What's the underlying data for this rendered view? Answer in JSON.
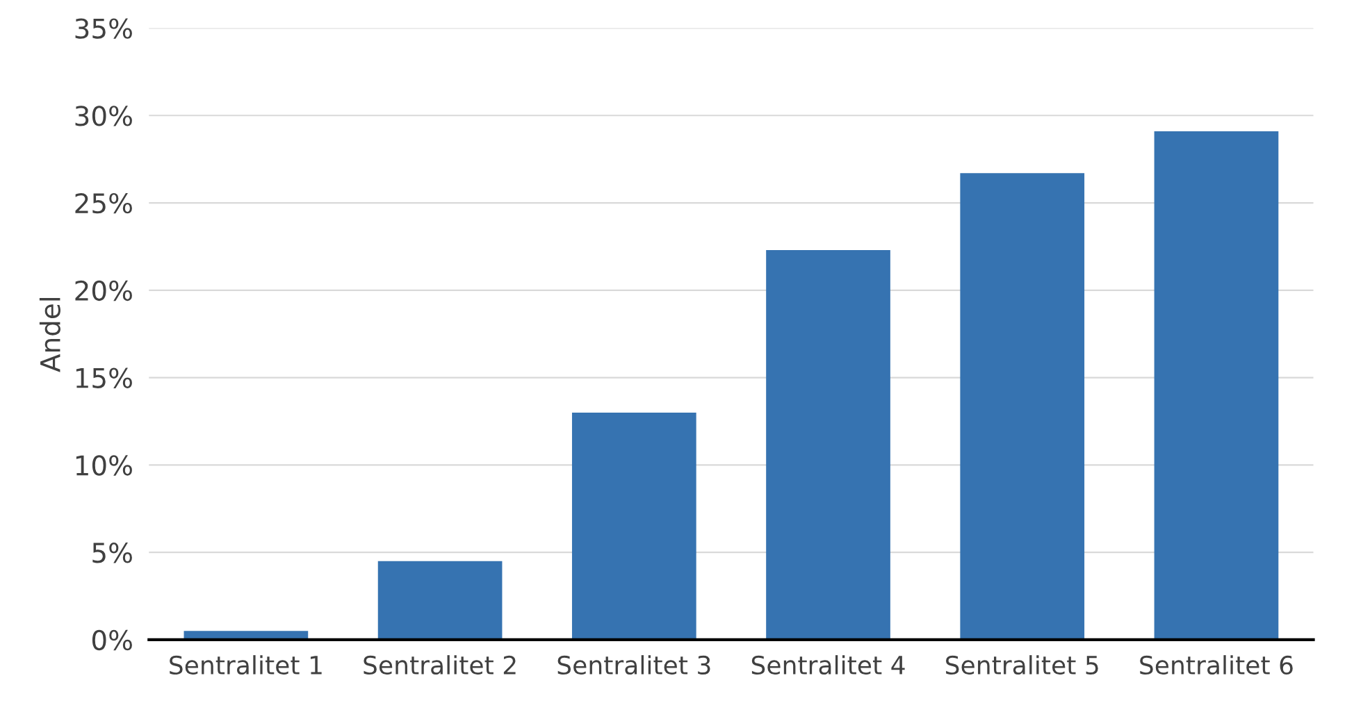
{
  "chart_data": {
    "type": "bar",
    "ylabel": "Andel",
    "categories": [
      "Sentralitet 1",
      "Sentralitet 2",
      "Sentralitet 3",
      "Sentralitet 4",
      "Sentralitet 5",
      "Sentralitet 6"
    ],
    "values": [
      0.5,
      4.5,
      13.0,
      22.3,
      26.7,
      29.1
    ],
    "color": "#3673b1",
    "ylim": [
      0,
      35
    ],
    "yticks": [
      {
        "value": 0,
        "label": "0%"
      },
      {
        "value": 5,
        "label": "5%"
      },
      {
        "value": 10,
        "label": "10%"
      },
      {
        "value": 15,
        "label": "15%"
      },
      {
        "value": 20,
        "label": "20%"
      },
      {
        "value": 25,
        "label": "25%"
      },
      {
        "value": 30,
        "label": "30%"
      },
      {
        "value": 35,
        "label": "35%"
      }
    ],
    "grid": "y"
  }
}
